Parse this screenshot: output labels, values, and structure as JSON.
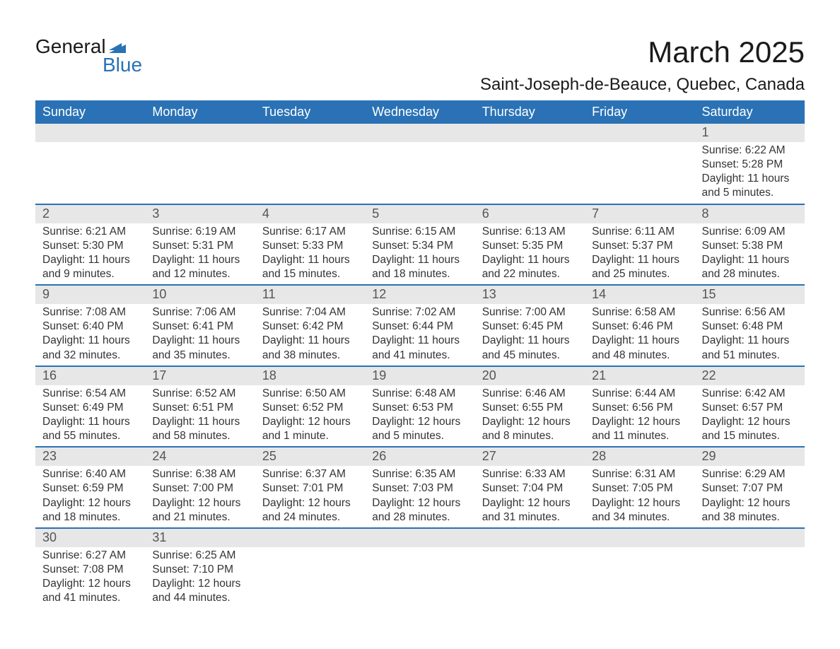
{
  "logo": {
    "main": "General",
    "sub": "Blue"
  },
  "title": {
    "month": "March 2025",
    "location": "Saint-Joseph-de-Beauce, Quebec, Canada"
  },
  "styling": {
    "header_bg": "#2a72b5",
    "header_text": "#ffffff",
    "daynum_bg": "#e7e7e7",
    "daynum_text": "#555555",
    "body_text": "#333333",
    "row_divider": "#2a72b5",
    "page_bg": "#ffffff",
    "logo_accent": "#2a72b5",
    "title_fontsize": 42,
    "location_fontsize": 24,
    "header_fontsize": 18,
    "daynum_fontsize": 18,
    "body_fontsize": 15.5,
    "columns": 7,
    "rows": 6
  },
  "weekdays": [
    "Sunday",
    "Monday",
    "Tuesday",
    "Wednesday",
    "Thursday",
    "Friday",
    "Saturday"
  ],
  "weeks": [
    [
      {
        "n": "",
        "sunrise": "",
        "sunset": "",
        "daylight": ""
      },
      {
        "n": "",
        "sunrise": "",
        "sunset": "",
        "daylight": ""
      },
      {
        "n": "",
        "sunrise": "",
        "sunset": "",
        "daylight": ""
      },
      {
        "n": "",
        "sunrise": "",
        "sunset": "",
        "daylight": ""
      },
      {
        "n": "",
        "sunrise": "",
        "sunset": "",
        "daylight": ""
      },
      {
        "n": "",
        "sunrise": "",
        "sunset": "",
        "daylight": ""
      },
      {
        "n": "1",
        "sunrise": "Sunrise: 6:22 AM",
        "sunset": "Sunset: 5:28 PM",
        "daylight": "Daylight: 11 hours and 5 minutes."
      }
    ],
    [
      {
        "n": "2",
        "sunrise": "Sunrise: 6:21 AM",
        "sunset": "Sunset: 5:30 PM",
        "daylight": "Daylight: 11 hours and 9 minutes."
      },
      {
        "n": "3",
        "sunrise": "Sunrise: 6:19 AM",
        "sunset": "Sunset: 5:31 PM",
        "daylight": "Daylight: 11 hours and 12 minutes."
      },
      {
        "n": "4",
        "sunrise": "Sunrise: 6:17 AM",
        "sunset": "Sunset: 5:33 PM",
        "daylight": "Daylight: 11 hours and 15 minutes."
      },
      {
        "n": "5",
        "sunrise": "Sunrise: 6:15 AM",
        "sunset": "Sunset: 5:34 PM",
        "daylight": "Daylight: 11 hours and 18 minutes."
      },
      {
        "n": "6",
        "sunrise": "Sunrise: 6:13 AM",
        "sunset": "Sunset: 5:35 PM",
        "daylight": "Daylight: 11 hours and 22 minutes."
      },
      {
        "n": "7",
        "sunrise": "Sunrise: 6:11 AM",
        "sunset": "Sunset: 5:37 PM",
        "daylight": "Daylight: 11 hours and 25 minutes."
      },
      {
        "n": "8",
        "sunrise": "Sunrise: 6:09 AM",
        "sunset": "Sunset: 5:38 PM",
        "daylight": "Daylight: 11 hours and 28 minutes."
      }
    ],
    [
      {
        "n": "9",
        "sunrise": "Sunrise: 7:08 AM",
        "sunset": "Sunset: 6:40 PM",
        "daylight": "Daylight: 11 hours and 32 minutes."
      },
      {
        "n": "10",
        "sunrise": "Sunrise: 7:06 AM",
        "sunset": "Sunset: 6:41 PM",
        "daylight": "Daylight: 11 hours and 35 minutes."
      },
      {
        "n": "11",
        "sunrise": "Sunrise: 7:04 AM",
        "sunset": "Sunset: 6:42 PM",
        "daylight": "Daylight: 11 hours and 38 minutes."
      },
      {
        "n": "12",
        "sunrise": "Sunrise: 7:02 AM",
        "sunset": "Sunset: 6:44 PM",
        "daylight": "Daylight: 11 hours and 41 minutes."
      },
      {
        "n": "13",
        "sunrise": "Sunrise: 7:00 AM",
        "sunset": "Sunset: 6:45 PM",
        "daylight": "Daylight: 11 hours and 45 minutes."
      },
      {
        "n": "14",
        "sunrise": "Sunrise: 6:58 AM",
        "sunset": "Sunset: 6:46 PM",
        "daylight": "Daylight: 11 hours and 48 minutes."
      },
      {
        "n": "15",
        "sunrise": "Sunrise: 6:56 AM",
        "sunset": "Sunset: 6:48 PM",
        "daylight": "Daylight: 11 hours and 51 minutes."
      }
    ],
    [
      {
        "n": "16",
        "sunrise": "Sunrise: 6:54 AM",
        "sunset": "Sunset: 6:49 PM",
        "daylight": "Daylight: 11 hours and 55 minutes."
      },
      {
        "n": "17",
        "sunrise": "Sunrise: 6:52 AM",
        "sunset": "Sunset: 6:51 PM",
        "daylight": "Daylight: 11 hours and 58 minutes."
      },
      {
        "n": "18",
        "sunrise": "Sunrise: 6:50 AM",
        "sunset": "Sunset: 6:52 PM",
        "daylight": "Daylight: 12 hours and 1 minute."
      },
      {
        "n": "19",
        "sunrise": "Sunrise: 6:48 AM",
        "sunset": "Sunset: 6:53 PM",
        "daylight": "Daylight: 12 hours and 5 minutes."
      },
      {
        "n": "20",
        "sunrise": "Sunrise: 6:46 AM",
        "sunset": "Sunset: 6:55 PM",
        "daylight": "Daylight: 12 hours and 8 minutes."
      },
      {
        "n": "21",
        "sunrise": "Sunrise: 6:44 AM",
        "sunset": "Sunset: 6:56 PM",
        "daylight": "Daylight: 12 hours and 11 minutes."
      },
      {
        "n": "22",
        "sunrise": "Sunrise: 6:42 AM",
        "sunset": "Sunset: 6:57 PM",
        "daylight": "Daylight: 12 hours and 15 minutes."
      }
    ],
    [
      {
        "n": "23",
        "sunrise": "Sunrise: 6:40 AM",
        "sunset": "Sunset: 6:59 PM",
        "daylight": "Daylight: 12 hours and 18 minutes."
      },
      {
        "n": "24",
        "sunrise": "Sunrise: 6:38 AM",
        "sunset": "Sunset: 7:00 PM",
        "daylight": "Daylight: 12 hours and 21 minutes."
      },
      {
        "n": "25",
        "sunrise": "Sunrise: 6:37 AM",
        "sunset": "Sunset: 7:01 PM",
        "daylight": "Daylight: 12 hours and 24 minutes."
      },
      {
        "n": "26",
        "sunrise": "Sunrise: 6:35 AM",
        "sunset": "Sunset: 7:03 PM",
        "daylight": "Daylight: 12 hours and 28 minutes."
      },
      {
        "n": "27",
        "sunrise": "Sunrise: 6:33 AM",
        "sunset": "Sunset: 7:04 PM",
        "daylight": "Daylight: 12 hours and 31 minutes."
      },
      {
        "n": "28",
        "sunrise": "Sunrise: 6:31 AM",
        "sunset": "Sunset: 7:05 PM",
        "daylight": "Daylight: 12 hours and 34 minutes."
      },
      {
        "n": "29",
        "sunrise": "Sunrise: 6:29 AM",
        "sunset": "Sunset: 7:07 PM",
        "daylight": "Daylight: 12 hours and 38 minutes."
      }
    ],
    [
      {
        "n": "30",
        "sunrise": "Sunrise: 6:27 AM",
        "sunset": "Sunset: 7:08 PM",
        "daylight": "Daylight: 12 hours and 41 minutes."
      },
      {
        "n": "31",
        "sunrise": "Sunrise: 6:25 AM",
        "sunset": "Sunset: 7:10 PM",
        "daylight": "Daylight: 12 hours and 44 minutes."
      },
      {
        "n": "",
        "sunrise": "",
        "sunset": "",
        "daylight": ""
      },
      {
        "n": "",
        "sunrise": "",
        "sunset": "",
        "daylight": ""
      },
      {
        "n": "",
        "sunrise": "",
        "sunset": "",
        "daylight": ""
      },
      {
        "n": "",
        "sunrise": "",
        "sunset": "",
        "daylight": ""
      },
      {
        "n": "",
        "sunrise": "",
        "sunset": "",
        "daylight": ""
      }
    ]
  ]
}
